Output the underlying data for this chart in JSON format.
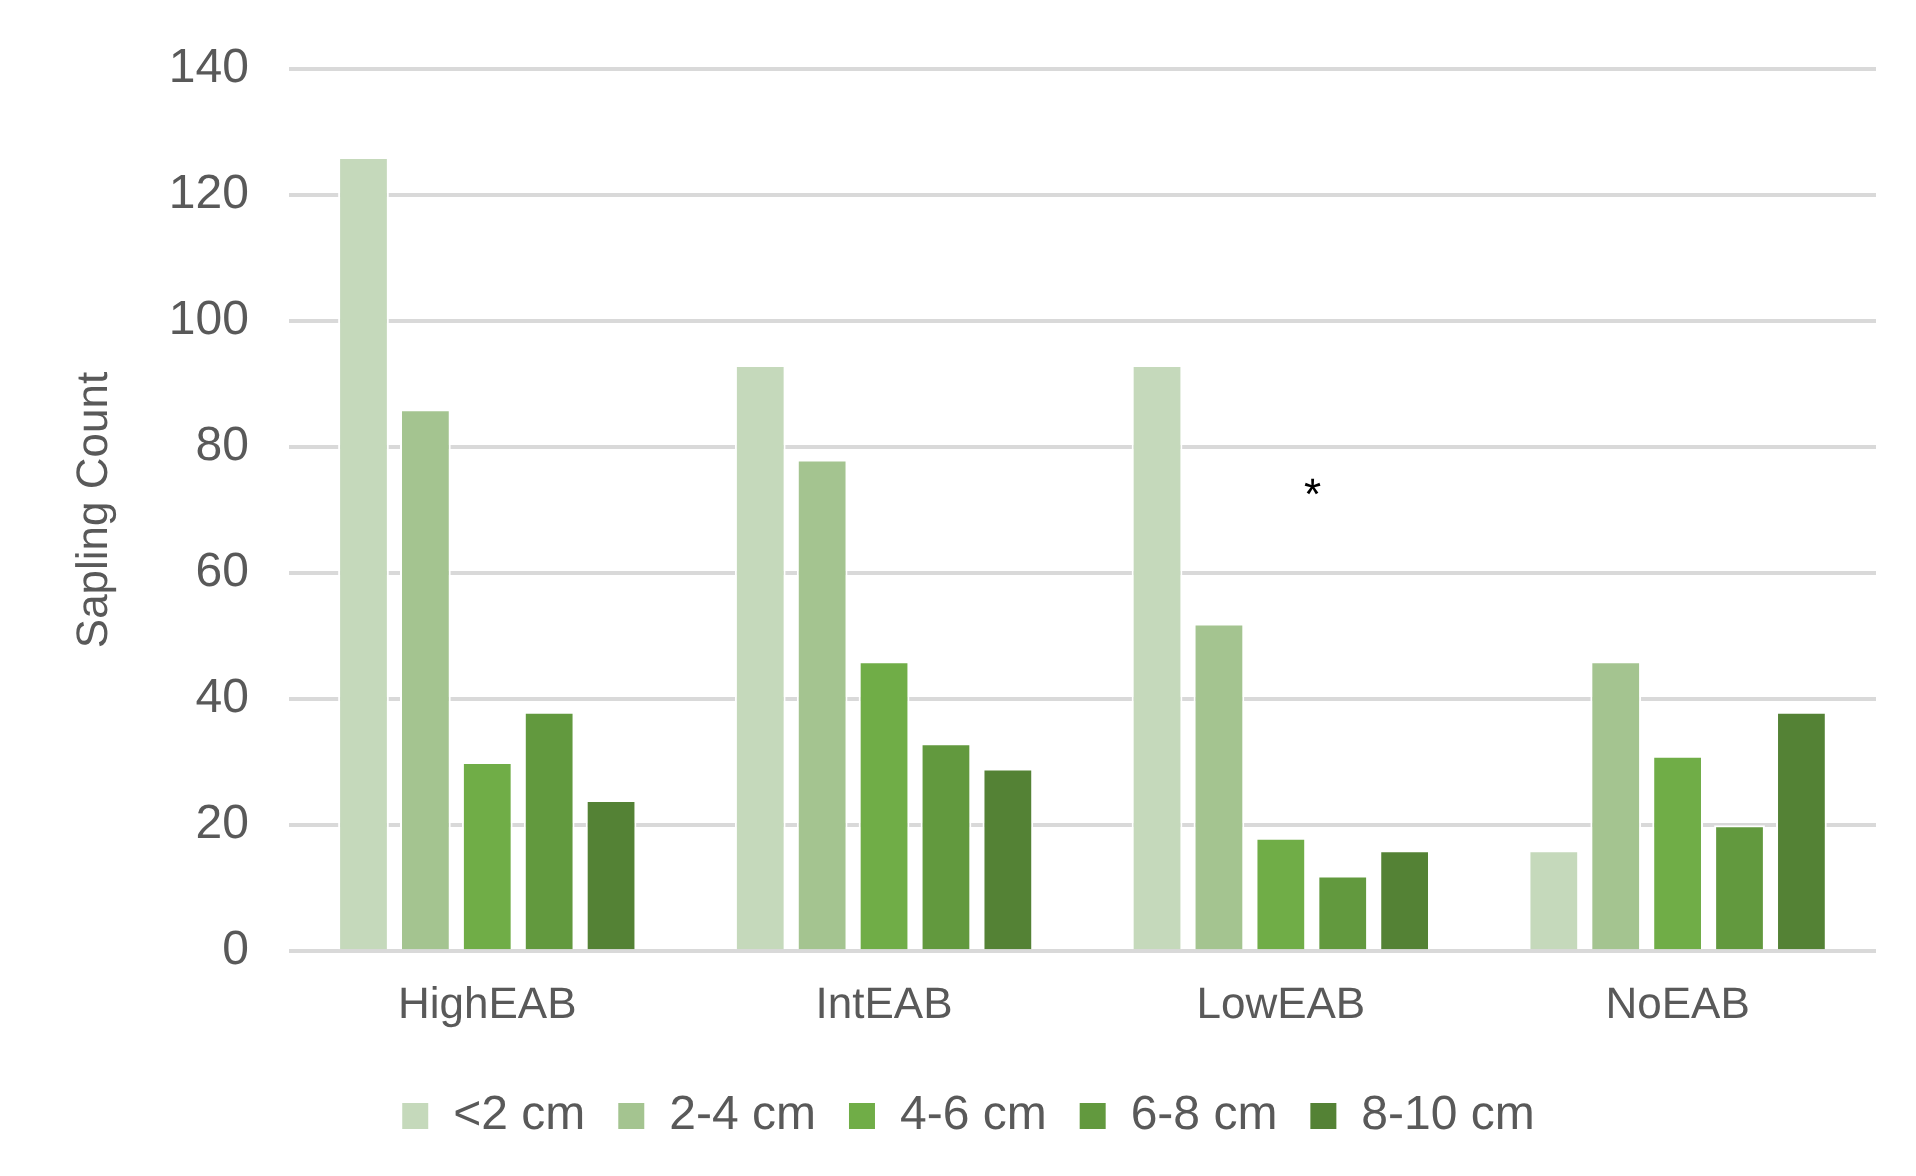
{
  "chart_data": {
    "type": "bar",
    "ylabel": "Sapling Count",
    "categories": [
      "HighEAB",
      "IntEAB",
      "LowEAB",
      "NoEAB"
    ],
    "series": [
      {
        "name": "<2 cm",
        "color": "#c5d9bb",
        "values": [
          126,
          93,
          93,
          16
        ]
      },
      {
        "name": "2-4 cm",
        "color": "#a4c490",
        "values": [
          86,
          78,
          52,
          46
        ]
      },
      {
        "name": "4-6 cm",
        "color": "#70ad47",
        "values": [
          30,
          46,
          18,
          31
        ]
      },
      {
        "name": "6-8 cm",
        "color": "#62993e",
        "values": [
          38,
          33,
          12,
          20
        ]
      },
      {
        "name": "8-10 cm",
        "color": "#548235",
        "values": [
          24,
          29,
          16,
          38
        ]
      }
    ],
    "ylim": [
      0,
      140
    ],
    "yticks": [
      0,
      20,
      40,
      60,
      80,
      100,
      120,
      140
    ],
    "grid": "y",
    "legend": "bottom",
    "annotations": [
      "*"
    ]
  }
}
